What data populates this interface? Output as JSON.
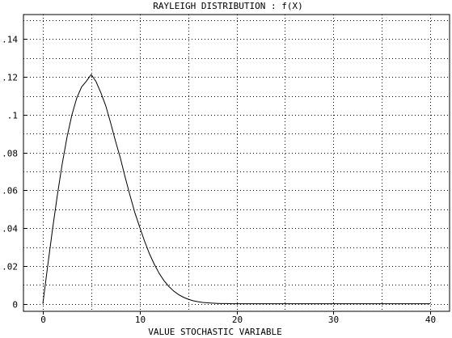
{
  "chart_data": {
    "type": "line",
    "title": "RAYLEIGH DISTRIBUTION : f(X)",
    "xlabel": "VALUE STOCHASTIC VARIABLE",
    "ylabel": "",
    "xlim": [
      -2,
      42
    ],
    "ylim": [
      -0.004,
      0.153
    ],
    "xticks": [
      0,
      10,
      20,
      30,
      40
    ],
    "xtick_labels": [
      "0",
      "10",
      "20",
      "30",
      "40"
    ],
    "xminor": [
      5,
      15,
      25,
      35
    ],
    "yticks": [
      0,
      0.02,
      0.04,
      0.06,
      0.08,
      0.1,
      0.12,
      0.14
    ],
    "ytick_labels": [
      "0",
      ".02",
      ".04",
      ".06",
      ".08",
      ".1",
      ".12",
      ".14"
    ],
    "yminor": [
      0.01,
      0.03,
      0.05,
      0.07,
      0.09,
      0.11,
      0.13,
      0.15
    ],
    "grid": true,
    "series": [
      {
        "x": [
          0,
          0.5,
          1,
          1.5,
          2,
          2.5,
          3,
          3.5,
          4,
          4.5,
          5,
          5.5,
          6,
          6.5,
          7,
          7.5,
          8,
          8.5,
          9,
          9.5,
          10,
          10.5,
          11,
          11.5,
          12,
          12.5,
          13,
          13.5,
          14,
          14.5,
          15,
          15.5,
          16,
          16.5,
          17,
          17.5,
          18,
          18.5,
          19,
          19.5,
          20,
          20.5,
          21,
          30,
          40
        ],
        "y": [
          0,
          0.0198,
          0.0392,
          0.0574,
          0.0739,
          0.0882,
          0.0999,
          0.1088,
          0.1147,
          0.1178,
          0.1213,
          0.1175,
          0.1116,
          0.1047,
          0.0957,
          0.0861,
          0.0772,
          0.0669,
          0.0573,
          0.0483,
          0.0406,
          0.0332,
          0.0266,
          0.021,
          0.0162,
          0.0123,
          0.0092,
          0.0068,
          0.0049,
          0.0035,
          0.0024,
          0.0016,
          0.0011,
          0.0007,
          0.0005,
          0.0003,
          0.0002,
          0.0001,
          0.0001,
          0,
          0,
          0,
          0,
          0,
          0
        ]
      }
    ]
  }
}
